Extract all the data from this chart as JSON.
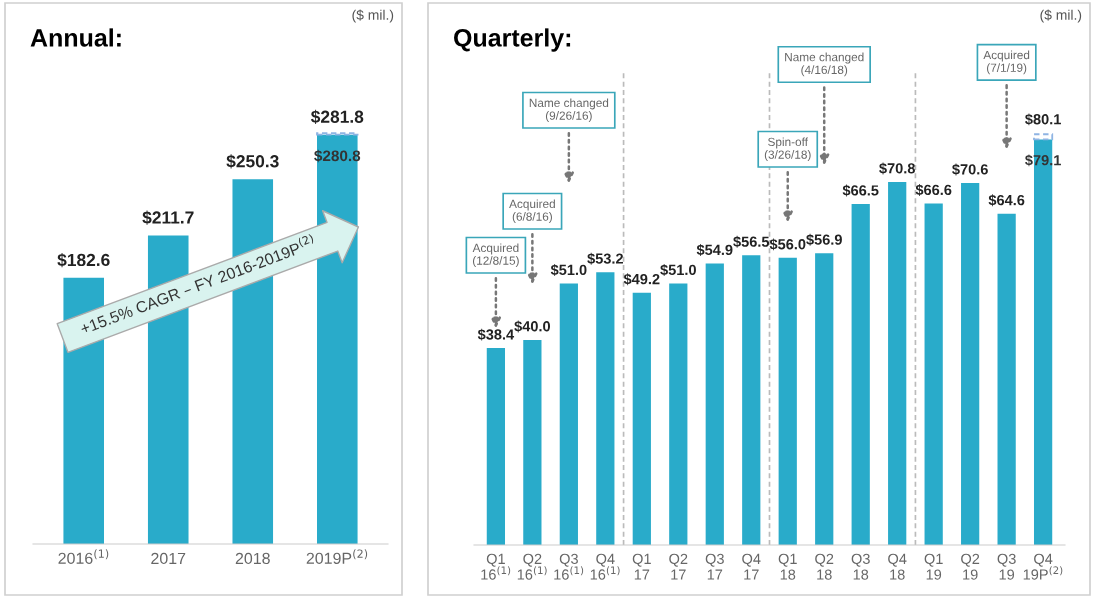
{
  "chart_data": [
    {
      "type": "bar",
      "title": "Annual:",
      "stacked": true,
      "categories": [
        "2016$^{(1)}$",
        "2017",
        "2018",
        "2019P$^{(2)}$"
      ],
      "tick_labels": "x",
      "series": [
        {
          "color": "#29abca",
          "values": [
            182.6,
            211.7,
            250.3,
            280.8
          ],
          "value_labels": [
            "$182.6",
            "$211.7",
            "$250.3",
            "$280.8"
          ]
        },
        {
          "color": "#8fb4e3",
          "values": [
            null,
            null,
            null,
            1.0
          ],
          "line_style": "dashed"
        }
      ],
      "annotations": [
        "($ mil.)",
        "+15.5% CAGR – FY 2016-2019P$^{(2)}$",
        {
          "text": "$281.8",
          "x": "2019P$^{(2)}$",
          "y": 281.8
        }
      ]
    },
    {
      "type": "bar",
      "title": "Quarterly:",
      "stacked": true,
      "categories": [
        "Q1\n16$^{(1)}$",
        "Q2\n16$^{(1)}$",
        "Q3\n16$^{(1)}$",
        "Q4\n16$^{(1)}$",
        "Q1\n17",
        "Q2\n17",
        "Q3\n17",
        "Q4\n17",
        "Q1\n18",
        "Q2\n18",
        "Q3\n18",
        "Q4\n18",
        "Q1\n19",
        "Q2\n19",
        "Q3\n19",
        "Q4\n19P$^{(2)}$"
      ],
      "tick_labels": "x",
      "series": [
        {
          "color": "#29abca",
          "values": [
            38.4,
            40.0,
            51.0,
            53.2,
            49.2,
            51.0,
            54.9,
            56.5,
            56.0,
            56.9,
            66.5,
            70.8,
            66.6,
            70.6,
            64.6,
            79.1
          ],
          "value_labels": [
            "$38.4",
            "$40.0",
            "$51.0",
            "$53.2",
            "$49.2",
            "$51.0",
            "$54.9",
            "$56.5",
            "$56.0",
            "$56.9",
            "$66.5",
            "$70.8",
            "$66.6",
            "$70.6",
            "$64.6",
            "$79.1"
          ]
        },
        {
          "color": "#8fb4e3",
          "values": [
            null,
            null,
            null,
            null,
            null,
            null,
            null,
            null,
            null,
            null,
            null,
            null,
            null,
            null,
            null,
            1.0
          ],
          "line_style": "dashed"
        }
      ],
      "annotations": [
        "($ mil.)",
        "Acquired\n(12/8/15)",
        "Acquired\n(6/8/16)",
        "Name changed\n(9/26/16)",
        "Spin-off\n(3/26/18)",
        "Name changed\n(4/16/18)",
        "Acquired\n(7/1/19)",
        {
          "text": "$80.1",
          "x": "Q4\n19P$^{(2)}$",
          "y": 80.1
        }
      ]
    }
  ]
}
